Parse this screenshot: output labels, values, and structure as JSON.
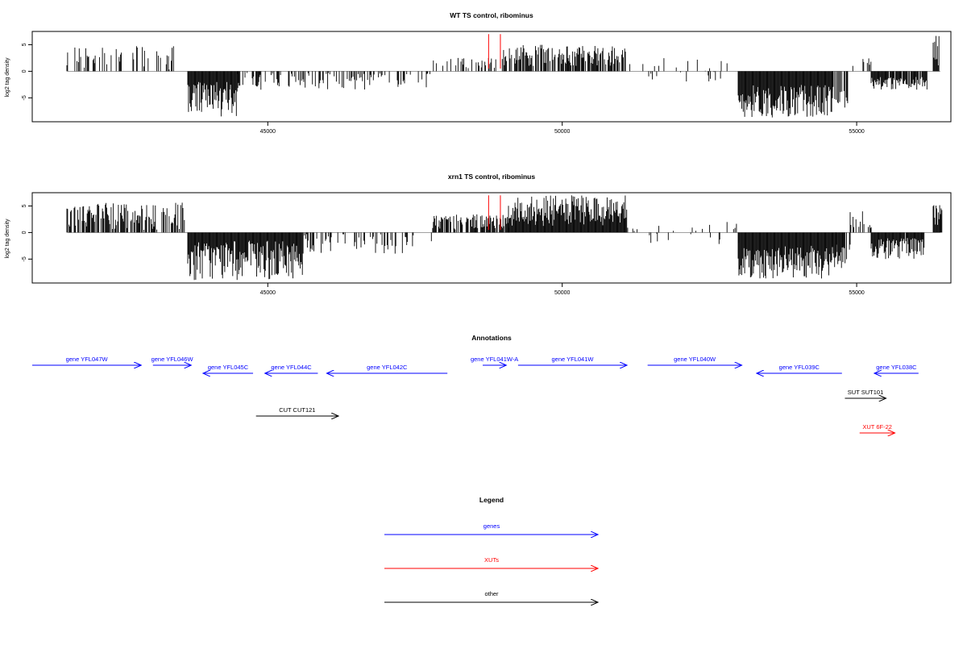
{
  "chart_data": [
    {
      "type": "bar",
      "title": "WT TS control, ribominus",
      "ylabel": "log2 tag density",
      "xlim": [
        41000,
        56600
      ],
      "ylim": [
        -9.5,
        7.5
      ],
      "x_ticks": [
        45000,
        50000,
        55000
      ],
      "y_ticks": [
        -5,
        0,
        5
      ],
      "bar_color": "#000000",
      "marker_color": "#ff0000",
      "markers": [
        {
          "x": 48750,
          "y": 7
        },
        {
          "x": 48950,
          "y": 7
        }
      ],
      "segments": [
        {
          "start": 41600,
          "end": 43400,
          "density": 0.35,
          "min": 0.3,
          "max": 4.8
        },
        {
          "start": 43650,
          "end": 44500,
          "density": 1.0,
          "min": -8.5,
          "max": -2.0
        },
        {
          "start": 44500,
          "end": 47800,
          "density": 0.28,
          "min": -3.5,
          "max": -0.3
        },
        {
          "start": 47800,
          "end": 49000,
          "density": 0.22,
          "min": 0.5,
          "max": 2.6
        },
        {
          "start": 49000,
          "end": 51100,
          "density": 0.75,
          "min": 1.0,
          "max": 5.0
        },
        {
          "start": 51100,
          "end": 53000,
          "density": 0.15,
          "min": -2.0,
          "max": 2.5
        },
        {
          "start": 53000,
          "end": 54600,
          "density": 1.0,
          "min": -8.8,
          "max": -2.5
        },
        {
          "start": 54600,
          "end": 54850,
          "density": 0.6,
          "min": -7.0,
          "max": -2.0
        },
        {
          "start": 54850,
          "end": 55250,
          "density": 0.2,
          "min": 0.5,
          "max": 2.5
        },
        {
          "start": 55250,
          "end": 56200,
          "density": 0.9,
          "min": -3.5,
          "max": -1.0
        },
        {
          "start": 56300,
          "end": 56400,
          "density": 1.0,
          "min": 1.0,
          "max": 6.8
        }
      ]
    },
    {
      "type": "bar",
      "title": "xrn1 TS control, ribominus",
      "ylabel": "log2 tag density",
      "xlim": [
        41000,
        56600
      ],
      "ylim": [
        -9.5,
        7.5
      ],
      "x_ticks": [
        45000,
        50000,
        55000
      ],
      "y_ticks": [
        -5,
        0,
        5
      ],
      "bar_color": "#000000",
      "marker_color": "#ff0000",
      "markers": [
        {
          "x": 48750,
          "y": 7
        },
        {
          "x": 48950,
          "y": 7
        }
      ],
      "segments": [
        {
          "start": 41600,
          "end": 43600,
          "density": 0.7,
          "min": 0.5,
          "max": 5.8
        },
        {
          "start": 43650,
          "end": 45600,
          "density": 1.0,
          "min": -9.0,
          "max": -1.5
        },
        {
          "start": 45600,
          "end": 47800,
          "density": 0.3,
          "min": -4.0,
          "max": -0.3
        },
        {
          "start": 47800,
          "end": 49100,
          "density": 0.7,
          "min": 0.5,
          "max": 3.6
        },
        {
          "start": 49100,
          "end": 51100,
          "density": 1.0,
          "min": 1.0,
          "max": 7.0
        },
        {
          "start": 51100,
          "end": 53000,
          "density": 0.15,
          "min": -2.5,
          "max": 2.0
        },
        {
          "start": 53000,
          "end": 54650,
          "density": 1.0,
          "min": -8.8,
          "max": -2.5
        },
        {
          "start": 54650,
          "end": 54900,
          "density": 0.6,
          "min": -7.0,
          "max": -2.0
        },
        {
          "start": 54900,
          "end": 55250,
          "density": 0.35,
          "min": 0.5,
          "max": 4.0
        },
        {
          "start": 55250,
          "end": 56150,
          "density": 0.95,
          "min": -5.0,
          "max": -1.0
        },
        {
          "start": 56300,
          "end": 56450,
          "density": 1.0,
          "min": 1.0,
          "max": 6.4
        }
      ]
    }
  ],
  "annotations": {
    "title": "Annotations",
    "xlim": [
      41000,
      56600
    ],
    "features": [
      {
        "label": "gene YFL047W",
        "type": "genes",
        "start": 41000,
        "end": 42850,
        "strand": "+",
        "row": 0
      },
      {
        "label": "gene YFL046W",
        "type": "genes",
        "start": 43050,
        "end": 43700,
        "strand": "+",
        "row": 0
      },
      {
        "label": "gene YFL045C",
        "type": "genes",
        "start": 43900,
        "end": 44750,
        "strand": "-",
        "row": 1
      },
      {
        "label": "gene YFL044C",
        "type": "genes",
        "start": 44950,
        "end": 45850,
        "strand": "-",
        "row": 1
      },
      {
        "label": "gene YFL042C",
        "type": "genes",
        "start": 46000,
        "end": 48050,
        "strand": "-",
        "row": 1
      },
      {
        "label": "gene YFL041W-A",
        "type": "genes",
        "start": 48650,
        "end": 49050,
        "strand": "+",
        "row": 0
      },
      {
        "label": "gene YFL041W",
        "type": "genes",
        "start": 49250,
        "end": 51100,
        "strand": "+",
        "row": 0
      },
      {
        "label": "gene YFL040W",
        "type": "genes",
        "start": 51450,
        "end": 53050,
        "strand": "+",
        "row": 0
      },
      {
        "label": "gene YFL039C",
        "type": "genes",
        "start": 53300,
        "end": 54750,
        "strand": "-",
        "row": 1
      },
      {
        "label": "gene YFL038C",
        "type": "genes",
        "start": 55300,
        "end": 56050,
        "strand": "-",
        "row": 1
      },
      {
        "label": "SUT SUT101",
        "type": "other",
        "start": 54800,
        "end": 55500,
        "strand": "+",
        "row": 2
      },
      {
        "label": "CUT CUT121",
        "type": "other",
        "start": 44800,
        "end": 46200,
        "strand": "+",
        "row": 3
      },
      {
        "label": "XUT 6F-22",
        "type": "XUTs",
        "start": 55050,
        "end": 55650,
        "strand": "+",
        "row": 4
      }
    ]
  },
  "legend": {
    "title": "Legend",
    "entries": [
      {
        "name": "genes",
        "color": "#0000ff"
      },
      {
        "name": "XUTs",
        "color": "#ff0000"
      },
      {
        "name": "other",
        "color": "#000000"
      }
    ]
  }
}
